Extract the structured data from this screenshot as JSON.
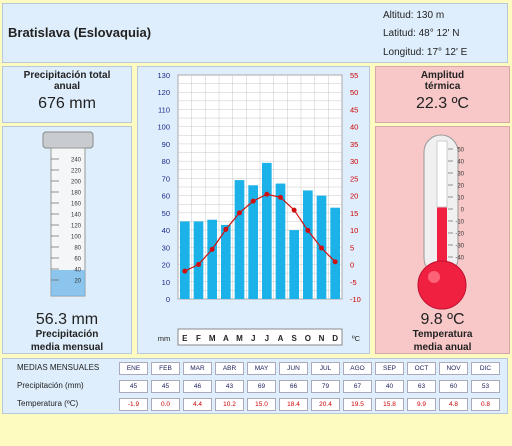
{
  "header": {
    "city": "Bratislava (Eslovaquia)",
    "altitude": "Altitud: 130 m",
    "latitude": "Latitud: 48° 12' N",
    "longitude": "Longitud:  17° 12' E"
  },
  "precip_total": {
    "label_line1": "Precipitación total",
    "label_line2": "anual",
    "value": "676 mm"
  },
  "precip_mean": {
    "value": "56.3 mm",
    "label_line1": "Precipitación",
    "label_line2": "media mensual"
  },
  "amplitude": {
    "label_line1": "Amplitud",
    "label_line2": "térmica",
    "value": "22.3 ºC"
  },
  "temp_mean": {
    "value": "9.8 ºC",
    "label_line1": "Temperatura",
    "label_line2": "media anual"
  },
  "gauge_ticks": [
    "240",
    "220",
    "200",
    "180",
    "160",
    "140",
    "120",
    "100",
    "80",
    "60",
    "40",
    "20"
  ],
  "thermo_ticks": [
    "50",
    "40",
    "30",
    "20",
    "10",
    "0",
    "-10",
    "-20",
    "-30",
    "-40"
  ],
  "chart_data": {
    "type": "bar+line",
    "categories": [
      "E",
      "F",
      "M",
      "A",
      "M",
      "J",
      "J",
      "A",
      "S",
      "O",
      "N",
      "D"
    ],
    "series": [
      {
        "name": "Precipitación (mm)",
        "type": "bar",
        "values": [
          45,
          45,
          46,
          43,
          69,
          66,
          79,
          67,
          40,
          63,
          60,
          53
        ]
      },
      {
        "name": "Temperatura (ºC)",
        "type": "line",
        "values": [
          -1.9,
          0.0,
          4.4,
          10.2,
          15.0,
          18.4,
          20.4,
          19.5,
          15.8,
          9.9,
          4.8,
          0.8
        ]
      }
    ],
    "left_axis_label": "mm",
    "right_axis_label": "ºC",
    "left_ticks": [
      "130",
      "120",
      "110",
      "100",
      "90",
      "80",
      "70",
      "60",
      "50",
      "40",
      "30",
      "20",
      "10",
      "0"
    ],
    "right_ticks": [
      "55",
      "50",
      "45",
      "40",
      "35",
      "30",
      "25",
      "20",
      "15",
      "10",
      "5",
      "0",
      "-5",
      "-10"
    ],
    "ylim_left": [
      0,
      130
    ],
    "ylim_right": [
      -10,
      55
    ],
    "grid": true
  },
  "table": {
    "title": "MEDIAS MENSUALES",
    "months": [
      "ENE",
      "FEB",
      "MAR",
      "ABR",
      "MAY",
      "JUN",
      "JUL",
      "AGO",
      "SEP",
      "OCT",
      "NOV",
      "DIC"
    ],
    "precip_label": "Precipitación (mm)",
    "temp_label": "Temperatura (ºC)",
    "precip": [
      "45",
      "45",
      "46",
      "43",
      "69",
      "66",
      "79",
      "67",
      "40",
      "63",
      "60",
      "53"
    ],
    "temp": [
      "-1.9",
      "0.0",
      "4.4",
      "10.2",
      "15.0",
      "18.4",
      "20.4",
      "19.5",
      "15.8",
      "9.9",
      "4.8",
      "0.8"
    ]
  },
  "colors": {
    "bar": "#1ab2e8",
    "line": "#d01010",
    "thermo": "#f02040"
  }
}
